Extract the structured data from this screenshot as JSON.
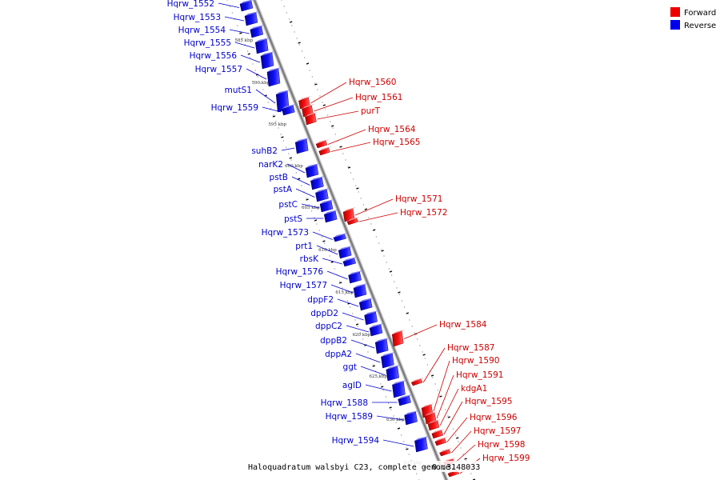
{
  "caption": "Haloquadratum walsbyi C23, complete genome.",
  "caption_range": "- 0..3148033",
  "colors": {
    "forward": "#ff0000",
    "reverse": "#0000ff",
    "backbone": "#888888"
  },
  "legend": [
    {
      "label": "Forward",
      "color": "#ee0000"
    },
    {
      "label": "Reverse",
      "color": "#0000ee"
    }
  ],
  "tick_labels": [
    "585 kbp",
    "590 kbp",
    "595 kbp",
    "600 kbp",
    "605 kbp",
    "610 kbp",
    "615 kbp",
    "620 kbp",
    "625 kbp",
    "630 kbp",
    "635 kbp"
  ],
  "reverse_genes": [
    "Hqrw_1552",
    "Hqrw_1553",
    "Hqrw_1554",
    "Hqrw_1555",
    "Hqrw_1556",
    "Hqrw_1557",
    "mutS1",
    "Hqrw_1559",
    "suhB2",
    "narK2",
    "pstB",
    "pstA",
    "pstC",
    "pstS",
    "Hqrw_1573",
    "prt1",
    "rbsK",
    "Hqrw_1576",
    "Hqrw_1577",
    "dppF2",
    "dppD2",
    "dppC2",
    "dppB2",
    "dppA2",
    "ggt",
    "aglD",
    "Hqrw_1588",
    "Hqrw_1589",
    "Hqrw_1594"
  ],
  "forward_genes": [
    "Hqrw_1560",
    "Hqrw_1561",
    "purT",
    "Hqrw_1564",
    "Hqrw_1565",
    "Hqrw_1571",
    "Hqrw_1572",
    "Hqrw_1584",
    "Hqrw_1587",
    "Hqrw_1590",
    "Hqrw_1591",
    "kdgA1",
    "Hqrw_1595",
    "Hqrw_1596",
    "Hqrw_1597",
    "Hqrw_1598",
    "Hqrw_1599"
  ]
}
